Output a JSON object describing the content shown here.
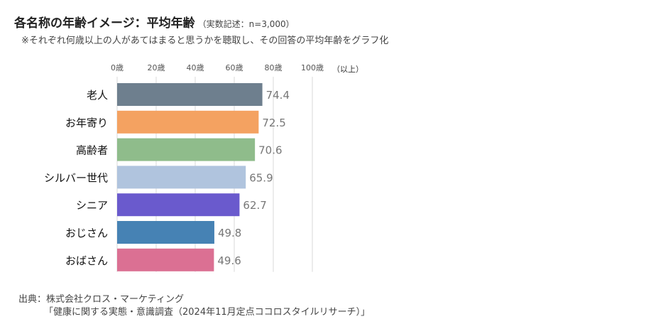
{
  "title": "各名称の年齢イメージ：平均年齢",
  "title_note": "（実数記述：n=3,000）",
  "subtitle": "※それぞれ何歳以上の人があてはまると思うかを聴取し、その回答の平均年齢をグラフ化",
  "axis_unit": "（以上）",
  "source_line1": "出典：株式会社クロス・マーケティング",
  "source_line2": "「健康に関する実態・意識調査（2024年11月定点ココロスタイルリサーチ）」",
  "chart_data": {
    "type": "bar",
    "orientation": "horizontal",
    "categories": [
      "老人",
      "お年寄り",
      "高齢者",
      "シルバー世代",
      "シニア",
      "おじさん",
      "おばさん"
    ],
    "values": [
      74.4,
      72.5,
      70.6,
      65.9,
      62.7,
      49.8,
      49.6
    ],
    "colors": [
      "#6e7f8e",
      "#f4a261",
      "#8fbc8b",
      "#b0c4de",
      "#6a5acd",
      "#4682b4",
      "#db7093"
    ],
    "xlim": [
      0,
      100
    ],
    "tick_values": [
      0,
      20,
      40,
      60,
      80,
      100
    ],
    "tick_labels": [
      "0歳",
      "20歳",
      "40歳",
      "60歳",
      "80歳",
      "100歳"
    ],
    "grid": true
  }
}
